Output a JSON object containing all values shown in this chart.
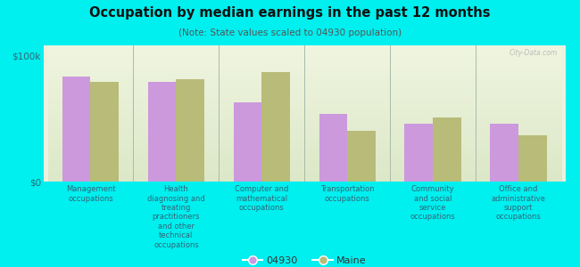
{
  "title": "Occupation by median earnings in the past 12 months",
  "subtitle": "(Note: State values scaled to 04930 population)",
  "background_color": "#00EFEF",
  "plot_bg_top": "#e8f0d8",
  "plot_bg_bottom": "#f5f8ee",
  "categories": [
    "Management\noccupations",
    "Health\ndiagnosing and\ntreating\npractitioners\nand other\ntechnical\noccupations",
    "Computer and\nmathematical\noccupations",
    "Transportation\noccupations",
    "Community\nand social\nservice\noccupations",
    "Office and\nadministrative\nsupport\noccupations"
  ],
  "values_04930": [
    83000,
    79000,
    63000,
    54000,
    46000,
    46000
  ],
  "values_maine": [
    79000,
    81000,
    87000,
    40000,
    51000,
    37000
  ],
  "color_04930": "#cc99dd",
  "color_maine": "#b8bc78",
  "ylim": [
    0,
    108000
  ],
  "ytick_labels": [
    "$0",
    "$100k"
  ],
  "ytick_vals": [
    0,
    100000
  ],
  "legend_04930": "04930",
  "legend_maine": "Maine",
  "watermark": "City-Data.com",
  "text_color": "#336677"
}
